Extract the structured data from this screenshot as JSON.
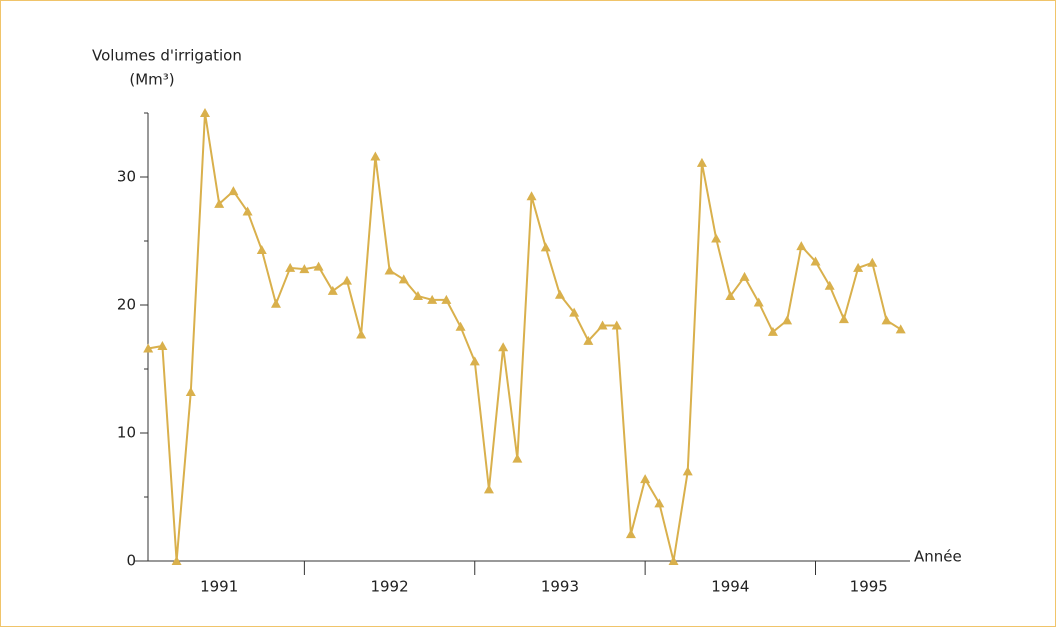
{
  "chart_data": {
    "type": "line",
    "ylabel": "Volumes d'irrigation",
    "yunit": "(Mm³)",
    "xlabel": "Année",
    "x": [
      0,
      1,
      2,
      3,
      4,
      5,
      6,
      7,
      8,
      9,
      10,
      11,
      12,
      13,
      14,
      15,
      16,
      17,
      18,
      19,
      20,
      21,
      22,
      23,
      24,
      25,
      26,
      27,
      28,
      29,
      30,
      31,
      32,
      33,
      34,
      35,
      36,
      37,
      38,
      39,
      40,
      41,
      42,
      43,
      44,
      45,
      46,
      47,
      48,
      49,
      50,
      51,
      52,
      53
    ],
    "series": [
      {
        "name": "Volumes",
        "color": "#d9b04c",
        "values": [
          16.6,
          16.8,
          0,
          13.2,
          35,
          27.9,
          28.9,
          27.3,
          24.3,
          20.1,
          22.9,
          22.8,
          23.0,
          21.1,
          21.9,
          17.7,
          31.6,
          22.7,
          22.0,
          20.7,
          20.4,
          20.4,
          18.3,
          15.6,
          5.6,
          16.7,
          8.0,
          28.5,
          24.5,
          20.8,
          19.4,
          17.2,
          18.4,
          18.4,
          2.1,
          6.4,
          4.5,
          0,
          7.0,
          31.1,
          25.2,
          20.7,
          22.2,
          20.2,
          17.9,
          18.8,
          24.6,
          23.4,
          21.5,
          18.9,
          22.9,
          23.3,
          18.8,
          18.1
        ]
      }
    ],
    "xlim": [
      -1,
      54.5
    ],
    "xticks": [
      11,
      23,
      35,
      47
    ],
    "periods": [
      "1991",
      "1992",
      "1993",
      "1994",
      "1995"
    ],
    "ylim": [
      0,
      35
    ],
    "yticks": [
      0,
      10,
      20,
      30
    ],
    "yminor": [
      5,
      15,
      25,
      35
    ]
  }
}
